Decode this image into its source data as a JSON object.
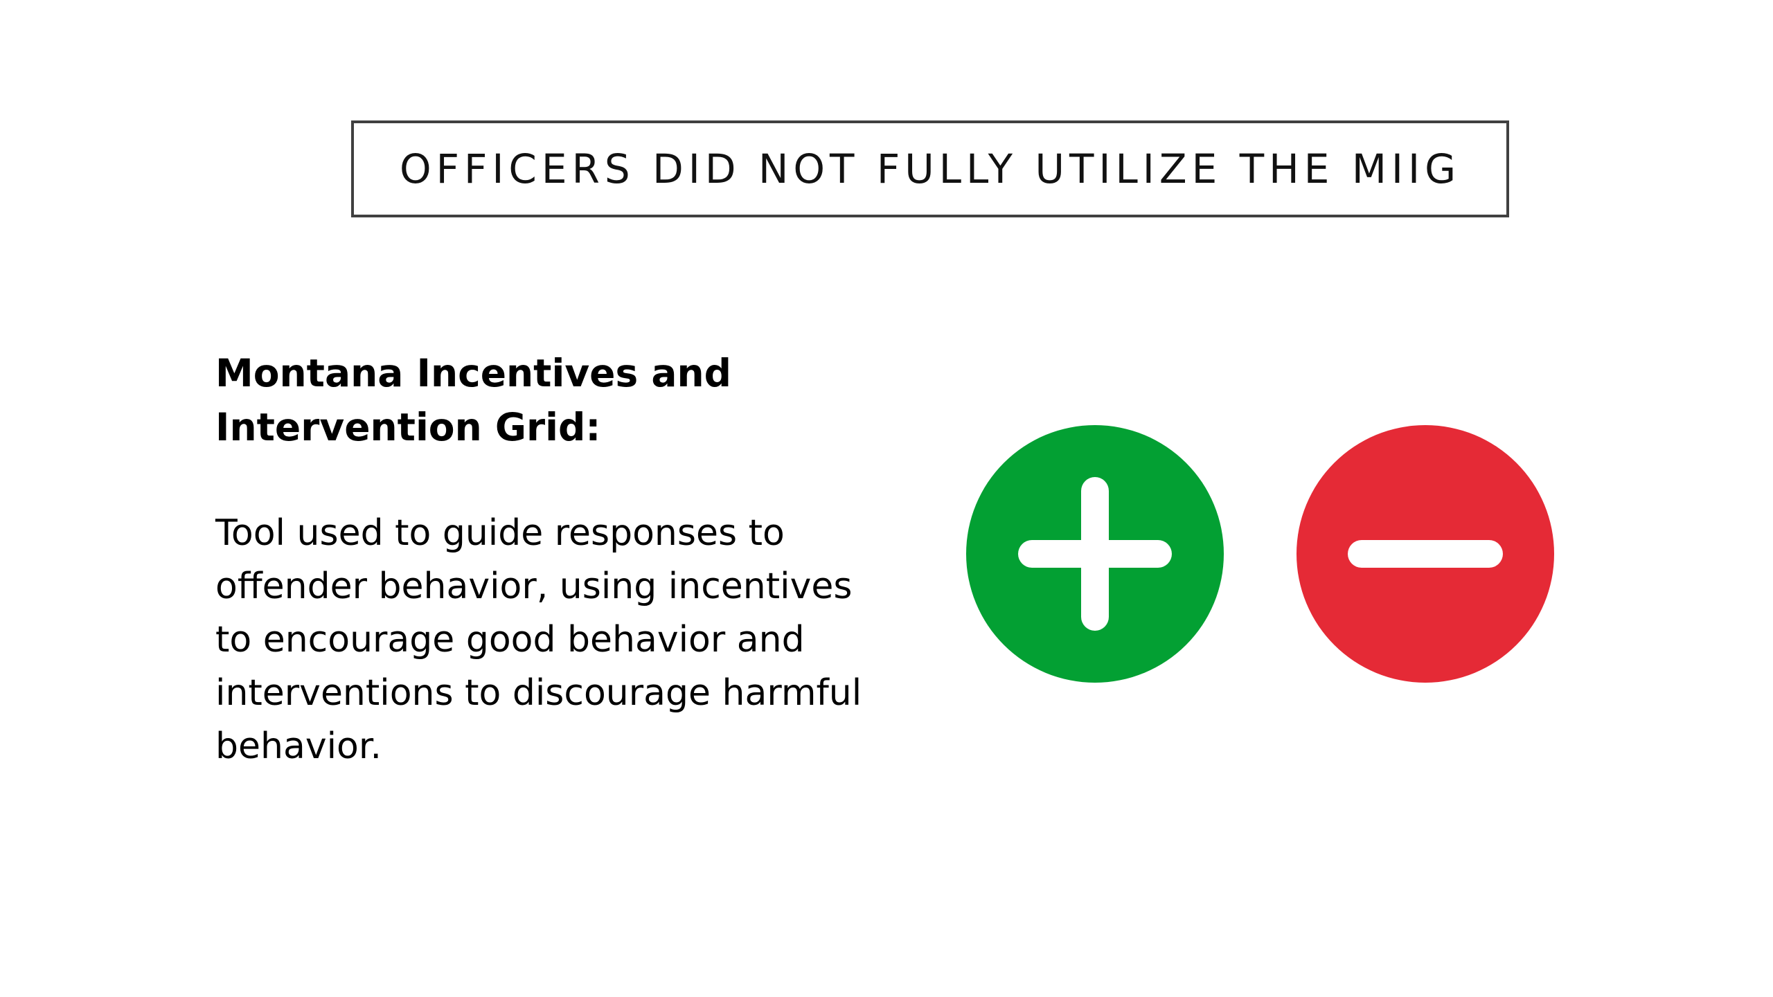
{
  "slide": {
    "title": "OFFICERS DID NOT FULLY UTILIZE THE MIIG",
    "heading": "Montana Incentives and Intervention Grid:",
    "body": "Tool used to guide responses to offender behavior, using incentives to encourage good behavior and interventions to discourage harmful behavior.",
    "icons": {
      "left": {
        "name": "plus-icon",
        "color": "#03a033"
      },
      "right": {
        "name": "minus-icon",
        "color": "#e52a36"
      }
    }
  }
}
